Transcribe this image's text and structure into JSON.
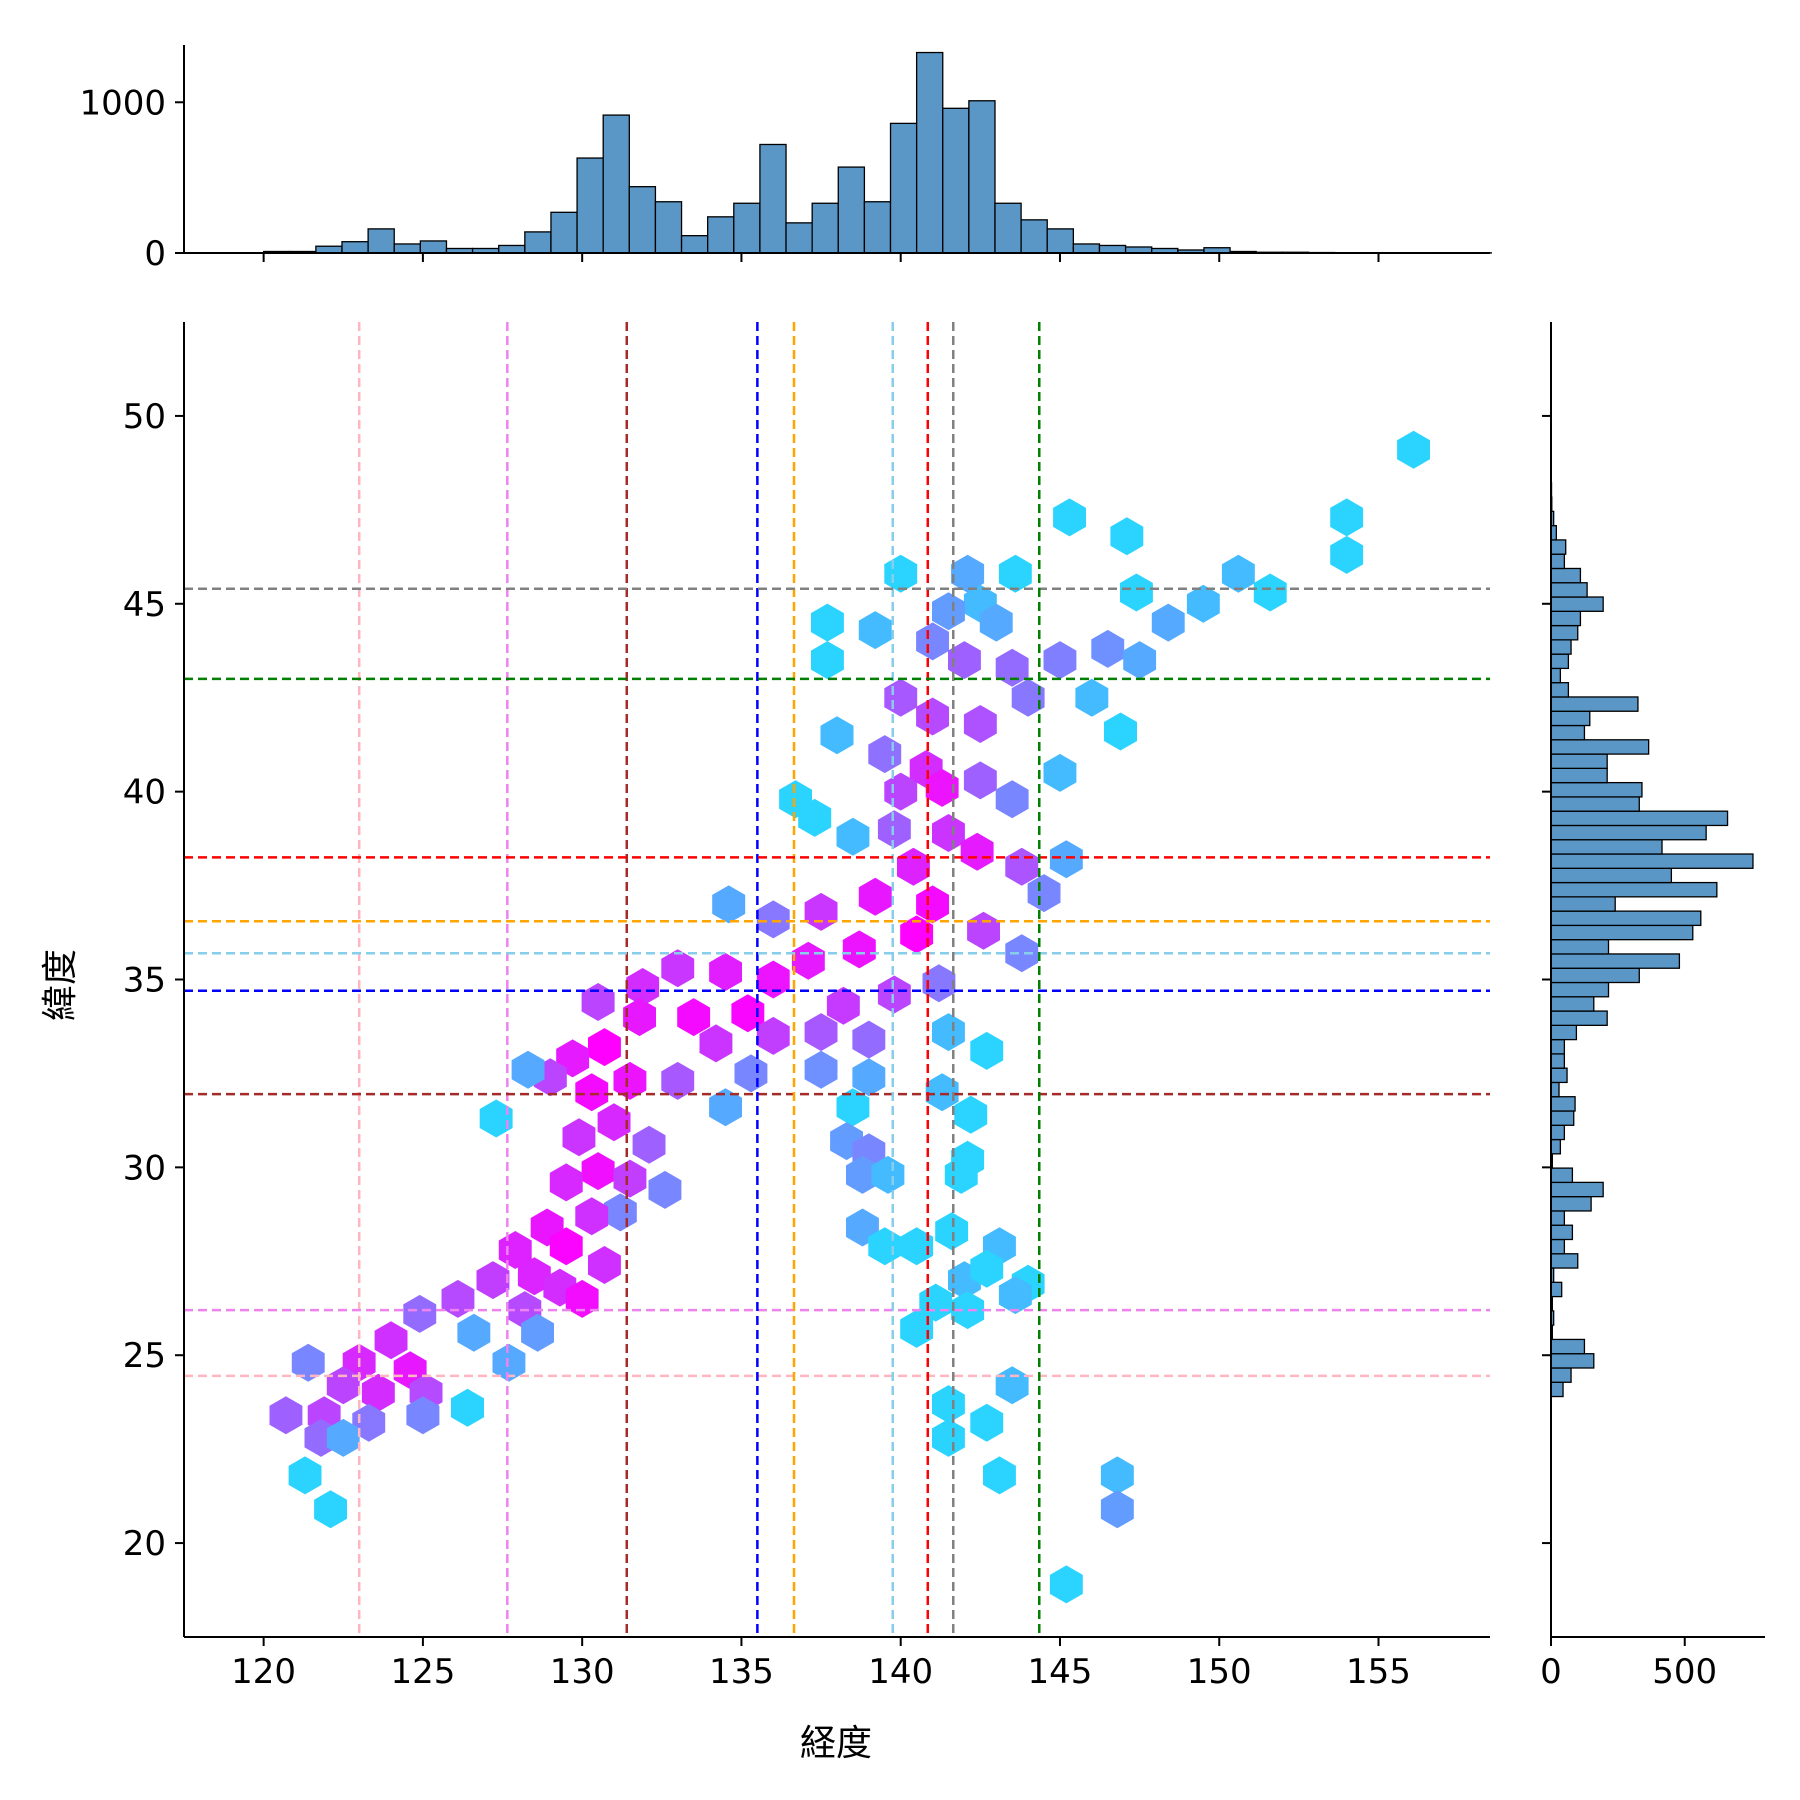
{
  "chart_data": {
    "type": "hexbin",
    "xlabel": "経度",
    "ylabel": "緯度",
    "xlim": [
      117.5,
      158.5
    ],
    "ylim": [
      17.5,
      52.5
    ],
    "x_ticks": [
      120,
      125,
      130,
      135,
      140,
      145,
      150,
      155
    ],
    "y_ticks": [
      20,
      25,
      30,
      35,
      40,
      45,
      50
    ],
    "colormap": [
      "#00ffff",
      "#ff00ff"
    ],
    "grid": false,
    "reference_lines": [
      {
        "color": "#ffb6c1",
        "lon": 123.0,
        "lat": 24.45
      },
      {
        "color": "#ee82ee",
        "lon": 127.65,
        "lat": 26.2
      },
      {
        "color": "#a52a2a",
        "lon": 131.4,
        "lat": 31.95
      },
      {
        "color": "#0000ff",
        "lon": 135.5,
        "lat": 34.7
      },
      {
        "color": "#ffa500",
        "lon": 136.65,
        "lat": 36.55
      },
      {
        "color": "#87ceeb",
        "lon": 139.75,
        "lat": 35.7
      },
      {
        "color": "#ff0000",
        "lon": 140.85,
        "lat": 38.25
      },
      {
        "color": "#808080",
        "lon": 141.65,
        "lat": 45.4
      },
      {
        "color": "#008000",
        "lon": 144.35,
        "lat": 43.0
      }
    ],
    "hexbins": [
      {
        "x": 156.1,
        "y": 49.1,
        "count": 1
      },
      {
        "x": 145.3,
        "y": 47.3,
        "count": 1
      },
      {
        "x": 147.1,
        "y": 46.8,
        "count": 1
      },
      {
        "x": 154.0,
        "y": 47.3,
        "count": 1
      },
      {
        "x": 154.0,
        "y": 46.3,
        "count": 1
      },
      {
        "x": 140.0,
        "y": 45.8,
        "count": 1
      },
      {
        "x": 142.1,
        "y": 45.8,
        "count": 3
      },
      {
        "x": 143.6,
        "y": 45.8,
        "count": 1
      },
      {
        "x": 150.6,
        "y": 45.8,
        "count": 2
      },
      {
        "x": 151.6,
        "y": 45.3,
        "count": 1
      },
      {
        "x": 142.5,
        "y": 45.0,
        "count": 2
      },
      {
        "x": 141.5,
        "y": 44.8,
        "count": 4
      },
      {
        "x": 143.0,
        "y": 44.5,
        "count": 3
      },
      {
        "x": 149.5,
        "y": 45.0,
        "count": 2
      },
      {
        "x": 148.4,
        "y": 44.5,
        "count": 3
      },
      {
        "x": 147.4,
        "y": 45.3,
        "count": 1
      },
      {
        "x": 139.2,
        "y": 44.3,
        "count": 2
      },
      {
        "x": 141.0,
        "y": 44.0,
        "count": 6
      },
      {
        "x": 142.0,
        "y": 43.5,
        "count": 12
      },
      {
        "x": 143.5,
        "y": 43.3,
        "count": 10
      },
      {
        "x": 145.0,
        "y": 43.5,
        "count": 7
      },
      {
        "x": 146.5,
        "y": 43.8,
        "count": 5
      },
      {
        "x": 147.5,
        "y": 43.5,
        "count": 3
      },
      {
        "x": 144.0,
        "y": 42.5,
        "count": 8
      },
      {
        "x": 146.0,
        "y": 42.5,
        "count": 2
      },
      {
        "x": 137.7,
        "y": 44.5,
        "count": 1
      },
      {
        "x": 137.7,
        "y": 43.5,
        "count": 1
      },
      {
        "x": 140.0,
        "y": 42.5,
        "count": 14
      },
      {
        "x": 141.0,
        "y": 42.0,
        "count": 18
      },
      {
        "x": 142.5,
        "y": 41.8,
        "count": 16
      },
      {
        "x": 138.0,
        "y": 41.5,
        "count": 2
      },
      {
        "x": 139.5,
        "y": 41.0,
        "count": 9
      },
      {
        "x": 140.8,
        "y": 40.6,
        "count": 30
      },
      {
        "x": 141.3,
        "y": 40.1,
        "count": 45
      },
      {
        "x": 140.0,
        "y": 40.0,
        "count": 20
      },
      {
        "x": 142.5,
        "y": 40.3,
        "count": 12
      },
      {
        "x": 143.5,
        "y": 39.8,
        "count": 6
      },
      {
        "x": 145.0,
        "y": 40.5,
        "count": 2
      },
      {
        "x": 146.9,
        "y": 41.6,
        "count": 1
      },
      {
        "x": 136.7,
        "y": 39.8,
        "count": 1
      },
      {
        "x": 137.3,
        "y": 39.3,
        "count": 1
      },
      {
        "x": 138.5,
        "y": 38.8,
        "count": 2
      },
      {
        "x": 139.8,
        "y": 39.0,
        "count": 12
      },
      {
        "x": 141.5,
        "y": 38.9,
        "count": 26
      },
      {
        "x": 142.4,
        "y": 38.4,
        "count": 40
      },
      {
        "x": 143.8,
        "y": 38.0,
        "count": 15
      },
      {
        "x": 144.5,
        "y": 37.3,
        "count": 6
      },
      {
        "x": 145.2,
        "y": 38.2,
        "count": 3
      },
      {
        "x": 140.4,
        "y": 38.0,
        "count": 35
      },
      {
        "x": 139.2,
        "y": 37.2,
        "count": 42
      },
      {
        "x": 141.0,
        "y": 37.0,
        "count": 52
      },
      {
        "x": 137.5,
        "y": 36.8,
        "count": 25
      },
      {
        "x": 136.0,
        "y": 36.6,
        "count": 8
      },
      {
        "x": 134.6,
        "y": 37.0,
        "count": 3
      },
      {
        "x": 140.5,
        "y": 36.2,
        "count": 60
      },
      {
        "x": 138.7,
        "y": 35.8,
        "count": 45
      },
      {
        "x": 142.6,
        "y": 36.3,
        "count": 20
      },
      {
        "x": 143.8,
        "y": 35.7,
        "count": 6
      },
      {
        "x": 137.1,
        "y": 35.5,
        "count": 40
      },
      {
        "x": 136.0,
        "y": 35.0,
        "count": 45
      },
      {
        "x": 134.5,
        "y": 35.2,
        "count": 38
      },
      {
        "x": 133.0,
        "y": 35.3,
        "count": 25
      },
      {
        "x": 131.9,
        "y": 34.8,
        "count": 30
      },
      {
        "x": 135.2,
        "y": 34.1,
        "count": 56
      },
      {
        "x": 133.5,
        "y": 34.0,
        "count": 52
      },
      {
        "x": 131.8,
        "y": 34.0,
        "count": 42
      },
      {
        "x": 130.5,
        "y": 34.4,
        "count": 20
      },
      {
        "x": 138.2,
        "y": 34.3,
        "count": 24
      },
      {
        "x": 139.8,
        "y": 34.6,
        "count": 20
      },
      {
        "x": 141.2,
        "y": 34.9,
        "count": 8
      },
      {
        "x": 137.5,
        "y": 33.6,
        "count": 14
      },
      {
        "x": 139.0,
        "y": 33.4,
        "count": 10
      },
      {
        "x": 136.0,
        "y": 33.5,
        "count": 22
      },
      {
        "x": 134.2,
        "y": 33.3,
        "count": 26
      },
      {
        "x": 141.5,
        "y": 33.6,
        "count": 2
      },
      {
        "x": 142.7,
        "y": 33.1,
        "count": 1
      },
      {
        "x": 130.7,
        "y": 33.2,
        "count": 62
      },
      {
        "x": 129.7,
        "y": 32.9,
        "count": 40
      },
      {
        "x": 131.5,
        "y": 32.3,
        "count": 45
      },
      {
        "x": 130.3,
        "y": 32.0,
        "count": 52
      },
      {
        "x": 129.0,
        "y": 32.4,
        "count": 20
      },
      {
        "x": 128.3,
        "y": 32.6,
        "count": 3
      },
      {
        "x": 135.3,
        "y": 32.5,
        "count": 6
      },
      {
        "x": 133.0,
        "y": 32.3,
        "count": 14
      },
      {
        "x": 134.5,
        "y": 31.6,
        "count": 3
      },
      {
        "x": 137.5,
        "y": 32.6,
        "count": 5
      },
      {
        "x": 139.0,
        "y": 32.4,
        "count": 3
      },
      {
        "x": 138.5,
        "y": 31.6,
        "count": 1
      },
      {
        "x": 141.3,
        "y": 32.0,
        "count": 2
      },
      {
        "x": 142.2,
        "y": 31.4,
        "count": 1
      },
      {
        "x": 131.0,
        "y": 31.2,
        "count": 32
      },
      {
        "x": 129.9,
        "y": 30.8,
        "count": 26
      },
      {
        "x": 132.1,
        "y": 30.6,
        "count": 12
      },
      {
        "x": 130.5,
        "y": 29.9,
        "count": 48
      },
      {
        "x": 129.5,
        "y": 29.6,
        "count": 32
      },
      {
        "x": 131.5,
        "y": 29.7,
        "count": 22
      },
      {
        "x": 132.6,
        "y": 29.4,
        "count": 6
      },
      {
        "x": 127.3,
        "y": 31.3,
        "count": 1
      },
      {
        "x": 131.2,
        "y": 28.8,
        "count": 6
      },
      {
        "x": 138.3,
        "y": 30.7,
        "count": 4
      },
      {
        "x": 139.0,
        "y": 30.4,
        "count": 6
      },
      {
        "x": 138.8,
        "y": 29.8,
        "count": 4
      },
      {
        "x": 139.6,
        "y": 29.8,
        "count": 2
      },
      {
        "x": 142.1,
        "y": 30.2,
        "count": 1
      },
      {
        "x": 141.9,
        "y": 29.8,
        "count": 1
      },
      {
        "x": 130.3,
        "y": 28.7,
        "count": 28
      },
      {
        "x": 128.9,
        "y": 28.4,
        "count": 44
      },
      {
        "x": 127.9,
        "y": 27.8,
        "count": 36
      },
      {
        "x": 129.5,
        "y": 27.9,
        "count": 58
      },
      {
        "x": 130.7,
        "y": 27.4,
        "count": 28
      },
      {
        "x": 128.5,
        "y": 27.1,
        "count": 34
      },
      {
        "x": 127.2,
        "y": 27.0,
        "count": 22
      },
      {
        "x": 129.3,
        "y": 26.8,
        "count": 30
      },
      {
        "x": 130.0,
        "y": 26.5,
        "count": 50
      },
      {
        "x": 128.2,
        "y": 26.2,
        "count": 18
      },
      {
        "x": 126.1,
        "y": 26.5,
        "count": 18
      },
      {
        "x": 124.9,
        "y": 26.1,
        "count": 10
      },
      {
        "x": 128.6,
        "y": 25.6,
        "count": 4
      },
      {
        "x": 127.7,
        "y": 24.8,
        "count": 3
      },
      {
        "x": 126.6,
        "y": 25.6,
        "count": 3
      },
      {
        "x": 138.8,
        "y": 28.4,
        "count": 3
      },
      {
        "x": 139.5,
        "y": 27.9,
        "count": 1
      },
      {
        "x": 140.5,
        "y": 27.9,
        "count": 1
      },
      {
        "x": 141.6,
        "y": 28.3,
        "count": 1
      },
      {
        "x": 141.1,
        "y": 26.4,
        "count": 1
      },
      {
        "x": 142.0,
        "y": 27.0,
        "count": 2
      },
      {
        "x": 143.1,
        "y": 27.9,
        "count": 2
      },
      {
        "x": 142.7,
        "y": 27.3,
        "count": 1
      },
      {
        "x": 144.0,
        "y": 26.9,
        "count": 1
      },
      {
        "x": 143.6,
        "y": 26.6,
        "count": 2
      },
      {
        "x": 142.1,
        "y": 26.2,
        "count": 1
      },
      {
        "x": 140.5,
        "y": 25.7,
        "count": 1
      },
      {
        "x": 124.0,
        "y": 25.4,
        "count": 28
      },
      {
        "x": 123.0,
        "y": 24.8,
        "count": 32
      },
      {
        "x": 124.6,
        "y": 24.6,
        "count": 42
      },
      {
        "x": 122.5,
        "y": 24.2,
        "count": 20
      },
      {
        "x": 123.6,
        "y": 24.0,
        "count": 30
      },
      {
        "x": 125.1,
        "y": 24.0,
        "count": 18
      },
      {
        "x": 121.4,
        "y": 24.8,
        "count": 6
      },
      {
        "x": 121.9,
        "y": 23.4,
        "count": 20
      },
      {
        "x": 120.7,
        "y": 23.4,
        "count": 12
      },
      {
        "x": 123.3,
        "y": 23.2,
        "count": 8
      },
      {
        "x": 125.0,
        "y": 23.4,
        "count": 6
      },
      {
        "x": 121.8,
        "y": 22.8,
        "count": 10
      },
      {
        "x": 122.5,
        "y": 22.8,
        "count": 3
      },
      {
        "x": 126.4,
        "y": 23.6,
        "count": 1
      },
      {
        "x": 121.3,
        "y": 21.8,
        "count": 1
      },
      {
        "x": 122.1,
        "y": 20.9,
        "count": 1
      },
      {
        "x": 141.5,
        "y": 23.7,
        "count": 1
      },
      {
        "x": 141.5,
        "y": 22.8,
        "count": 1
      },
      {
        "x": 142.7,
        "y": 23.2,
        "count": 1
      },
      {
        "x": 143.5,
        "y": 24.2,
        "count": 2
      },
      {
        "x": 143.1,
        "y": 21.8,
        "count": 1
      },
      {
        "x": 146.8,
        "y": 21.8,
        "count": 2
      },
      {
        "x": 146.8,
        "y": 20.9,
        "count": 4
      },
      {
        "x": 145.2,
        "y": 18.9,
        "count": 1
      }
    ],
    "top_histogram": {
      "bin_start": 120,
      "bin_width": 0.82,
      "counts": [
        10,
        10,
        45,
        75,
        160,
        60,
        80,
        30,
        30,
        50,
        140,
        270,
        630,
        915,
        440,
        340,
        115,
        240,
        330,
        720,
        200,
        330,
        570,
        340,
        860,
        1330,
        960,
        1010,
        330,
        220,
        160,
        60,
        50,
        40,
        30,
        20,
        35,
        10,
        5,
        5,
        3,
        2,
        2,
        1,
        1,
        1,
        1
      ],
      "y_ticks": [
        0,
        1000
      ],
      "ylim": [
        0,
        1380
      ]
    },
    "right_histogram": {
      "bin_start": 23.9,
      "bin_width": 0.38,
      "counts": [
        45,
        75,
        160,
        125,
        5,
        10,
        5,
        40,
        10,
        100,
        50,
        80,
        50,
        150,
        195,
        80,
        5,
        35,
        50,
        85,
        90,
        30,
        60,
        50,
        50,
        95,
        210,
        160,
        215,
        330,
        480,
        215,
        530,
        560,
        240,
        620,
        450,
        755,
        415,
        580,
        660,
        330,
        340,
        210,
        210,
        365,
        125,
        145,
        325,
        65,
        35,
        65,
        75,
        100,
        110,
        195,
        135,
        110,
        50,
        55,
        20,
        10,
        3,
        2,
        1
      ],
      "x_ticks": [
        0,
        500
      ],
      "xlim": [
        0,
        800
      ]
    }
  }
}
